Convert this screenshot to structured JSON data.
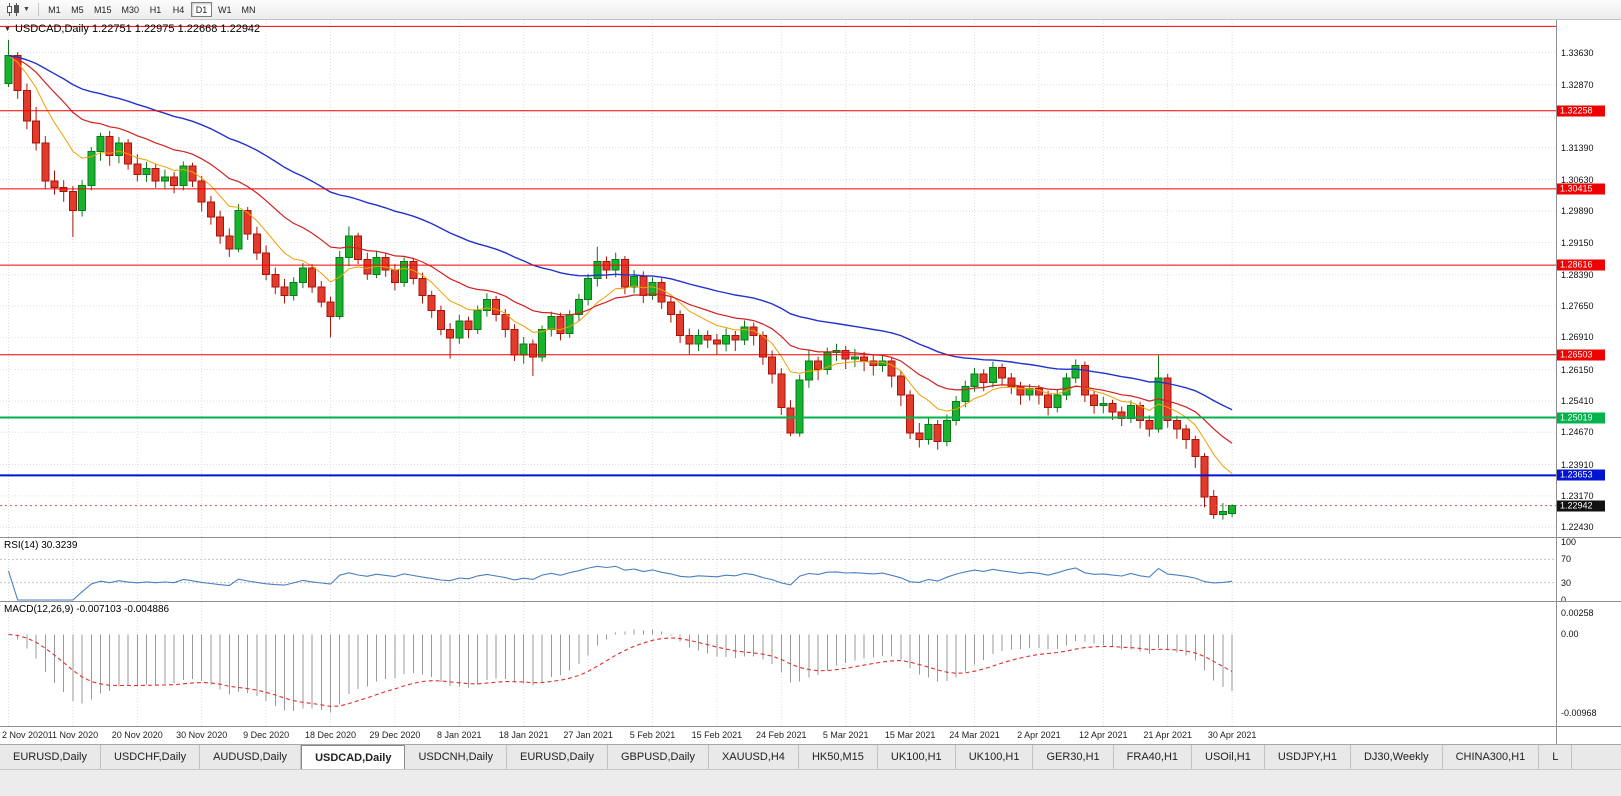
{
  "toolbar": {
    "timeframes": [
      {
        "label": "M1",
        "active": false
      },
      {
        "label": "M5",
        "active": false
      },
      {
        "label": "M15",
        "active": false
      },
      {
        "label": "M30",
        "active": false
      },
      {
        "label": "H1",
        "active": false
      },
      {
        "label": "H4",
        "active": false
      },
      {
        "label": "D1",
        "active": true
      },
      {
        "label": "W1",
        "active": false
      },
      {
        "label": "MN",
        "active": false
      }
    ]
  },
  "main_chart": {
    "title": "USDCAD,Daily 1.22751 1.22975 1.22668 1.22942",
    "current_price_label": "1.22942",
    "axis_labels": [
      "1.33630",
      "1.32870",
      "1.31390",
      "1.30630",
      "1.29890",
      "1.29150",
      "1.28390",
      "1.27650",
      "1.26910",
      "1.26150",
      "1.25410",
      "1.24670",
      "1.23910",
      "1.23170",
      "1.22430"
    ]
  },
  "rsi_panel": {
    "title": "RSI(14) 30.3239",
    "period": 14,
    "value": 30.3239,
    "line_color": "#4a7fc1",
    "level_lines": [
      70,
      30
    ],
    "axis_labels": [
      "100",
      "70",
      "30",
      "0"
    ],
    "axis_values": [
      100,
      70,
      30,
      0
    ]
  },
  "macd_panel": {
    "title": "MACD(12,26,9) -0.007103 -0.004886",
    "fast": 12,
    "slow": 26,
    "signal": 9,
    "macd_value": -0.007103,
    "signal_value": -0.004886,
    "histogram_color": "#999999",
    "signal_color": "#e03030",
    "axis_labels": [
      "0.00258",
      "0.00",
      "-0.00968"
    ],
    "axis_values": [
      0.00258,
      0,
      -0.00968
    ]
  },
  "tabs": [
    {
      "label": "EURUSD,Daily",
      "active": false
    },
    {
      "label": "USDCHF,Daily",
      "active": false
    },
    {
      "label": "AUDUSD,Daily",
      "active": false
    },
    {
      "label": "USDCAD,Daily",
      "active": true
    },
    {
      "label": "USDCNH,Daily",
      "active": false
    },
    {
      "label": "EURUSD,Daily",
      "active": false
    },
    {
      "label": "GBPUSD,Daily",
      "active": false
    },
    {
      "label": "XAUUSD,H4",
      "active": false
    },
    {
      "label": "HK50,M15",
      "active": false
    },
    {
      "label": "UK100,H1",
      "active": false
    },
    {
      "label": "UK100,H1",
      "active": false
    },
    {
      "label": "GER30,H1",
      "active": false
    },
    {
      "label": "FRA40,H1",
      "active": false
    },
    {
      "label": "USOil,H1",
      "active": false
    },
    {
      "label": "USDJPY,H1",
      "active": false
    },
    {
      "label": "DJ30,Weekly",
      "active": false
    },
    {
      "label": "CHINA300,H1",
      "active": false
    },
    {
      "label": "L",
      "active": false
    }
  ],
  "chart_data": {
    "type": "candlestick",
    "symbol": "USDCAD",
    "timeframe": "Daily",
    "last_ohlc": {
      "open": 1.22751,
      "high": 1.22975,
      "low": 1.22668,
      "close": 1.22942
    },
    "current_price": 1.22942,
    "y_range": [
      1.222,
      1.344
    ],
    "x_tick_step": 7,
    "x_tick_labels": [
      "2 Nov 2020",
      "11 Nov 2020",
      "20 Nov 2020",
      "30 Nov 2020",
      "9 Dec 2020",
      "18 Dec 2020",
      "29 Dec 2020",
      "8 Jan 2021",
      "18 Jan 2021",
      "27 Jan 2021",
      "5 Feb 2021",
      "15 Feb 2021",
      "24 Feb 2021",
      "5 Mar 2021",
      "15 Mar 2021",
      "24 Mar 2021",
      "2 Apr 2021",
      "12 Apr 2021",
      "21 Apr 2021",
      "30 Apr 2021"
    ],
    "grid_prices": [
      1.3363,
      1.3287,
      1.3211,
      1.3139,
      1.3063,
      1.2989,
      1.2915,
      1.2839,
      1.2765,
      1.2691,
      1.2615,
      1.2541,
      1.2467,
      1.2391,
      1.2317,
      1.2243
    ],
    "levels": [
      {
        "price": 1.3425,
        "label": "",
        "color": "#f00000",
        "line_width": 1
      },
      {
        "price": 1.32258,
        "label": "1.32258",
        "color": "#f00000",
        "line_width": 1
      },
      {
        "price": 1.30415,
        "label": "1.30415",
        "color": "#f00000",
        "line_width": 1
      },
      {
        "price": 1.28616,
        "label": "1.28616",
        "color": "#f00000",
        "line_width": 1
      },
      {
        "price": 1.26503,
        "label": "1.26503",
        "color": "#f00000",
        "line_width": 1
      },
      {
        "price": 1.25019,
        "label": "1.25019",
        "color": "#00b24b",
        "line_width": 2
      },
      {
        "price": 1.23653,
        "label": "1.23653",
        "color": "#0014d2",
        "line_width": 2
      }
    ],
    "moving_averages": [
      {
        "type": "ema",
        "period": 9,
        "color": "#f0a000",
        "width": 1
      },
      {
        "type": "ema",
        "period": 20,
        "color": "#d42020",
        "width": 1.2
      },
      {
        "type": "ema",
        "period": 45,
        "color": "#2233cc",
        "width": 1.4
      }
    ],
    "colors": {
      "bull_fill": "#17b32c",
      "bull_border": "#0a7a1a",
      "bear_fill": "#e23b2c",
      "bear_border": "#a81408",
      "grid": "#dedede",
      "price_line": "#cc5555"
    },
    "candles": [
      [
        1.329,
        1.3393,
        1.3282,
        1.3356
      ],
      [
        1.3356,
        1.3364,
        1.3254,
        1.3274
      ],
      [
        1.3274,
        1.329,
        1.3182,
        1.3202
      ],
      [
        1.3202,
        1.3235,
        1.3132,
        1.315
      ],
      [
        1.315,
        1.3166,
        1.3042,
        1.306
      ],
      [
        1.306,
        1.3085,
        1.3028,
        1.3045
      ],
      [
        1.3045,
        1.3062,
        1.3011,
        1.3035
      ],
      [
        1.3035,
        1.3048,
        1.2928,
        1.299
      ],
      [
        1.299,
        1.3062,
        1.2976,
        1.305
      ],
      [
        1.305,
        1.314,
        1.3038,
        1.313
      ],
      [
        1.313,
        1.3174,
        1.3108,
        1.3165
      ],
      [
        1.3165,
        1.3178,
        1.3096,
        1.312
      ],
      [
        1.312,
        1.3164,
        1.3102,
        1.315
      ],
      [
        1.315,
        1.3159,
        1.3087,
        1.31
      ],
      [
        1.31,
        1.3123,
        1.3059,
        1.3075
      ],
      [
        1.3075,
        1.3105,
        1.3058,
        1.309
      ],
      [
        1.309,
        1.3101,
        1.3044,
        1.306
      ],
      [
        1.306,
        1.3087,
        1.3042,
        1.307
      ],
      [
        1.307,
        1.3081,
        1.3031,
        1.305
      ],
      [
        1.305,
        1.3106,
        1.3038,
        1.3095
      ],
      [
        1.3095,
        1.3103,
        1.3046,
        1.306
      ],
      [
        1.306,
        1.3072,
        1.2988,
        1.301
      ],
      [
        1.301,
        1.3025,
        1.2957,
        1.2975
      ],
      [
        1.2975,
        1.299,
        1.2912,
        1.293
      ],
      [
        1.293,
        1.2948,
        1.2881,
        1.29
      ],
      [
        1.29,
        1.3005,
        1.2892,
        1.299
      ],
      [
        1.299,
        1.2999,
        1.2921,
        1.2935
      ],
      [
        1.2935,
        1.2952,
        1.2874,
        1.289
      ],
      [
        1.289,
        1.2908,
        1.2826,
        1.284
      ],
      [
        1.284,
        1.2856,
        1.2793,
        1.281
      ],
      [
        1.281,
        1.2829,
        1.2771,
        1.279
      ],
      [
        1.279,
        1.2833,
        1.2778,
        1.282
      ],
      [
        1.282,
        1.2867,
        1.2807,
        1.2855
      ],
      [
        1.2855,
        1.2864,
        1.2796,
        1.281
      ],
      [
        1.281,
        1.2824,
        1.2762,
        1.2775
      ],
      [
        1.2775,
        1.2787,
        1.2691,
        1.274
      ],
      [
        1.274,
        1.2895,
        1.2733,
        1.288
      ],
      [
        1.288,
        1.2953,
        1.2859,
        1.293
      ],
      [
        1.293,
        1.2938,
        1.2864,
        1.2875
      ],
      [
        1.2875,
        1.2891,
        1.2827,
        1.284
      ],
      [
        1.284,
        1.2896,
        1.2831,
        1.288
      ],
      [
        1.288,
        1.289,
        1.2834,
        1.285
      ],
      [
        1.285,
        1.2864,
        1.2802,
        1.282
      ],
      [
        1.282,
        1.288,
        1.281,
        1.287
      ],
      [
        1.287,
        1.2879,
        1.2816,
        1.283
      ],
      [
        1.283,
        1.2844,
        1.2771,
        1.279
      ],
      [
        1.279,
        1.2801,
        1.2737,
        1.2755
      ],
      [
        1.2755,
        1.2766,
        1.2696,
        1.271
      ],
      [
        1.271,
        1.2725,
        1.2641,
        1.269
      ],
      [
        1.269,
        1.2744,
        1.2676,
        1.273
      ],
      [
        1.273,
        1.274,
        1.2689,
        1.271
      ],
      [
        1.271,
        1.2766,
        1.2699,
        1.2755
      ],
      [
        1.2755,
        1.2795,
        1.274,
        1.278
      ],
      [
        1.278,
        1.2789,
        1.2729,
        1.2745
      ],
      [
        1.2745,
        1.2758,
        1.2691,
        1.271
      ],
      [
        1.271,
        1.2722,
        1.2635,
        1.265
      ],
      [
        1.265,
        1.2692,
        1.2629,
        1.2675
      ],
      [
        1.2675,
        1.2686,
        1.26,
        1.2645
      ],
      [
        1.2645,
        1.2719,
        1.2634,
        1.271
      ],
      [
        1.271,
        1.2752,
        1.2693,
        1.274
      ],
      [
        1.274,
        1.2749,
        1.2684,
        1.27
      ],
      [
        1.27,
        1.2755,
        1.269,
        1.2745
      ],
      [
        1.2745,
        1.2794,
        1.2731,
        1.278
      ],
      [
        1.278,
        1.2841,
        1.2767,
        1.283
      ],
      [
        1.283,
        1.2905,
        1.2811,
        1.287
      ],
      [
        1.287,
        1.2882,
        1.2829,
        1.285
      ],
      [
        1.285,
        1.2891,
        1.2833,
        1.2875
      ],
      [
        1.2875,
        1.2883,
        1.2793,
        1.281
      ],
      [
        1.281,
        1.285,
        1.2795,
        1.2835
      ],
      [
        1.2835,
        1.2847,
        1.2772,
        1.279
      ],
      [
        1.279,
        1.2833,
        1.278,
        1.282
      ],
      [
        1.282,
        1.2831,
        1.2758,
        1.2775
      ],
      [
        1.2775,
        1.2788,
        1.2726,
        1.2745
      ],
      [
        1.2745,
        1.2755,
        1.2678,
        1.2695
      ],
      [
        1.2695,
        1.2712,
        1.2651,
        1.2675
      ],
      [
        1.2675,
        1.271,
        1.2659,
        1.2695
      ],
      [
        1.2695,
        1.2707,
        1.2666,
        1.2685
      ],
      [
        1.2685,
        1.2699,
        1.2651,
        1.2675
      ],
      [
        1.2675,
        1.2712,
        1.2658,
        1.2695
      ],
      [
        1.2695,
        1.2706,
        1.2659,
        1.2685
      ],
      [
        1.2685,
        1.2731,
        1.2673,
        1.2715
      ],
      [
        1.2715,
        1.2726,
        1.2672,
        1.2695
      ],
      [
        1.2695,
        1.2705,
        1.2626,
        1.2645
      ],
      [
        1.2645,
        1.266,
        1.2582,
        1.2605
      ],
      [
        1.2605,
        1.2618,
        1.2508,
        1.2525
      ],
      [
        1.2525,
        1.2543,
        1.2458,
        1.2465
      ],
      [
        1.2465,
        1.2603,
        1.2457,
        1.259
      ],
      [
        1.259,
        1.266,
        1.2572,
        1.2635
      ],
      [
        1.2635,
        1.2645,
        1.259,
        1.2615
      ],
      [
        1.2615,
        1.2667,
        1.2603,
        1.2655
      ],
      [
        1.2655,
        1.2676,
        1.2635,
        1.266
      ],
      [
        1.266,
        1.2671,
        1.2616,
        1.264
      ],
      [
        1.264,
        1.2664,
        1.2621,
        1.2645
      ],
      [
        1.2645,
        1.2657,
        1.2611,
        1.2635
      ],
      [
        1.2635,
        1.265,
        1.2601,
        1.2625
      ],
      [
        1.2625,
        1.2651,
        1.261,
        1.2635
      ],
      [
        1.2635,
        1.2644,
        1.2573,
        1.26
      ],
      [
        1.26,
        1.2611,
        1.2529,
        1.2555
      ],
      [
        1.2555,
        1.2566,
        1.2451,
        1.2465
      ],
      [
        1.2465,
        1.2489,
        1.2431,
        1.245
      ],
      [
        1.245,
        1.2504,
        1.2438,
        1.2485
      ],
      [
        1.2485,
        1.2496,
        1.2426,
        1.2445
      ],
      [
        1.2445,
        1.2509,
        1.2434,
        1.2495
      ],
      [
        1.2495,
        1.2553,
        1.2483,
        1.254
      ],
      [
        1.254,
        1.2589,
        1.2526,
        1.2575
      ],
      [
        1.2575,
        1.2619,
        1.2563,
        1.2605
      ],
      [
        1.2605,
        1.2616,
        1.2564,
        1.2585
      ],
      [
        1.2585,
        1.2634,
        1.2573,
        1.262
      ],
      [
        1.262,
        1.2629,
        1.2578,
        1.2595
      ],
      [
        1.2595,
        1.2607,
        1.2557,
        1.2575
      ],
      [
        1.2575,
        1.2586,
        1.2532,
        1.2555
      ],
      [
        1.2555,
        1.2581,
        1.2542,
        1.257
      ],
      [
        1.257,
        1.2579,
        1.2533,
        1.2555
      ],
      [
        1.2555,
        1.2565,
        1.2507,
        1.2525
      ],
      [
        1.2525,
        1.2567,
        1.2514,
        1.2555
      ],
      [
        1.2555,
        1.2607,
        1.2543,
        1.2595
      ],
      [
        1.2595,
        1.2639,
        1.2583,
        1.2625
      ],
      [
        1.2625,
        1.2634,
        1.2538,
        1.2555
      ],
      [
        1.2555,
        1.2565,
        1.2511,
        1.253
      ],
      [
        1.253,
        1.2551,
        1.2512,
        1.2535
      ],
      [
        1.2535,
        1.2544,
        1.2496,
        1.2515
      ],
      [
        1.2515,
        1.2528,
        1.2482,
        1.25
      ],
      [
        1.25,
        1.2542,
        1.2489,
        1.253
      ],
      [
        1.253,
        1.2539,
        1.2476,
        1.2495
      ],
      [
        1.2495,
        1.2507,
        1.2457,
        1.2475
      ],
      [
        1.2475,
        1.2649,
        1.2466,
        1.2595
      ],
      [
        1.2595,
        1.2605,
        1.2478,
        1.2495
      ],
      [
        1.2495,
        1.2506,
        1.2452,
        1.2475
      ],
      [
        1.2475,
        1.2485,
        1.2428,
        1.245
      ],
      [
        1.245,
        1.2459,
        1.2383,
        1.241
      ],
      [
        1.241,
        1.2418,
        1.229,
        1.2315
      ],
      [
        1.2315,
        1.2331,
        1.2263,
        1.2273
      ],
      [
        1.2273,
        1.23,
        1.2261,
        1.228
      ],
      [
        1.22751,
        1.22975,
        1.22668,
        1.22942
      ]
    ]
  }
}
